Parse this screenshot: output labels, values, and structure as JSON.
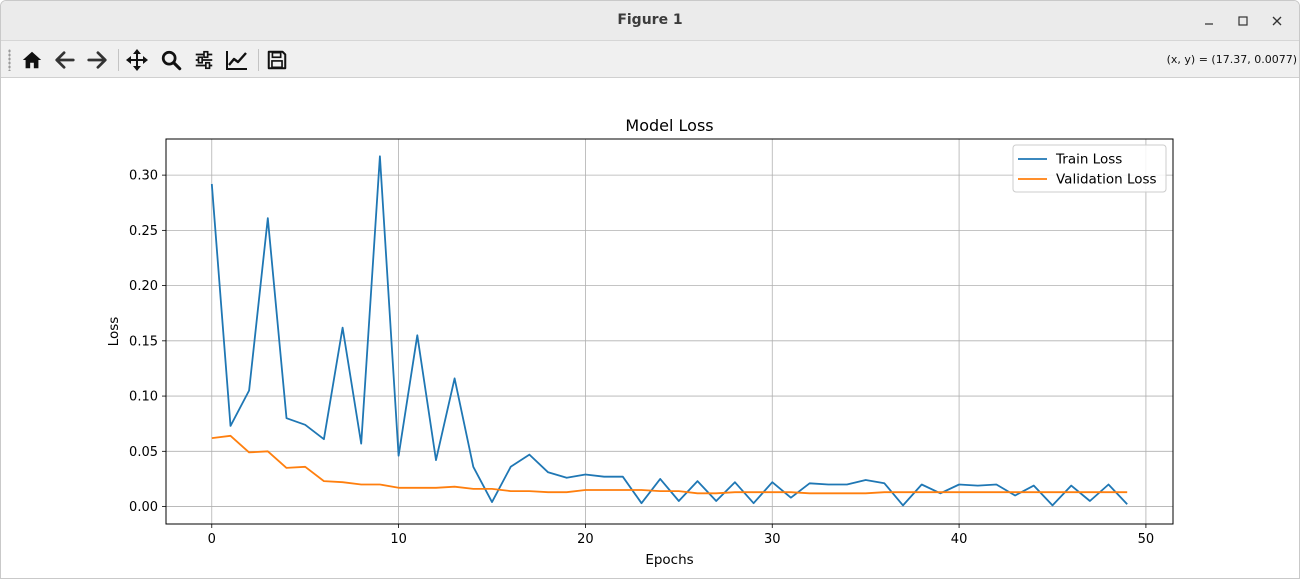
{
  "window": {
    "title": "Figure 1",
    "controls": {
      "minimize_icon": "minimize-icon",
      "maximize_icon": "maximize-icon",
      "close_icon": "close-icon"
    }
  },
  "toolbar": {
    "buttons": [
      {
        "name": "home-button",
        "icon": "home-icon"
      },
      {
        "name": "back-button",
        "icon": "arrow-left-icon"
      },
      {
        "name": "forward-button",
        "icon": "arrow-right-icon"
      },
      {
        "name": "pan-button",
        "icon": "move-icon"
      },
      {
        "name": "zoom-button",
        "icon": "magnifier-icon"
      },
      {
        "name": "configure-subplots-button",
        "icon": "sliders-icon"
      },
      {
        "name": "edit-axes-button",
        "icon": "line-chart-icon"
      },
      {
        "name": "save-button",
        "icon": "floppy-disk-icon"
      }
    ],
    "coords_text": "(x, y) = (17.37, 0.0077)"
  },
  "chart_data": {
    "type": "line",
    "title": "Model Loss",
    "xlabel": "Epochs",
    "ylabel": "Loss",
    "xlim": [
      -2.45,
      51.45
    ],
    "ylim": [
      -0.0158,
      0.3327
    ],
    "xticks": [
      0,
      10,
      20,
      30,
      40,
      50
    ],
    "xtick_labels": [
      "0",
      "10",
      "20",
      "30",
      "40",
      "50"
    ],
    "yticks": [
      0.0,
      0.05,
      0.1,
      0.15,
      0.2,
      0.25,
      0.3
    ],
    "ytick_labels": [
      "0.00",
      "0.05",
      "0.10",
      "0.15",
      "0.20",
      "0.25",
      "0.30"
    ],
    "grid": true,
    "legend_position": "top-right",
    "x": [
      0,
      1,
      2,
      3,
      4,
      5,
      6,
      7,
      8,
      9,
      10,
      11,
      12,
      13,
      14,
      15,
      16,
      17,
      18,
      19,
      20,
      21,
      22,
      23,
      24,
      25,
      26,
      27,
      28,
      29,
      30,
      31,
      32,
      33,
      34,
      35,
      36,
      37,
      38,
      39,
      40,
      41,
      42,
      43,
      44,
      45,
      46,
      47,
      48,
      49
    ],
    "series": [
      {
        "name": "Train Loss",
        "color": "#1f77b4",
        "values": [
          0.292,
          0.073,
          0.105,
          0.261,
          0.08,
          0.074,
          0.061,
          0.162,
          0.057,
          0.317,
          0.046,
          0.155,
          0.042,
          0.116,
          0.036,
          0.004,
          0.036,
          0.047,
          0.031,
          0.026,
          0.029,
          0.027,
          0.027,
          0.003,
          0.025,
          0.005,
          0.023,
          0.005,
          0.022,
          0.003,
          0.022,
          0.008,
          0.021,
          0.02,
          0.02,
          0.024,
          0.021,
          0.001,
          0.02,
          0.012,
          0.02,
          0.019,
          0.02,
          0.01,
          0.019,
          0.001,
          0.019,
          0.005,
          0.02,
          0.002
        ]
      },
      {
        "name": "Validation Loss",
        "color": "#ff7f0e",
        "values": [
          0.062,
          0.064,
          0.049,
          0.05,
          0.035,
          0.036,
          0.023,
          0.022,
          0.02,
          0.02,
          0.017,
          0.017,
          0.017,
          0.018,
          0.016,
          0.016,
          0.014,
          0.014,
          0.013,
          0.013,
          0.015,
          0.015,
          0.015,
          0.015,
          0.014,
          0.014,
          0.012,
          0.012,
          0.013,
          0.013,
          0.013,
          0.013,
          0.012,
          0.012,
          0.012,
          0.012,
          0.013,
          0.013,
          0.013,
          0.013,
          0.013,
          0.013,
          0.013,
          0.013,
          0.013,
          0.013,
          0.013,
          0.013,
          0.013,
          0.013
        ]
      }
    ]
  }
}
